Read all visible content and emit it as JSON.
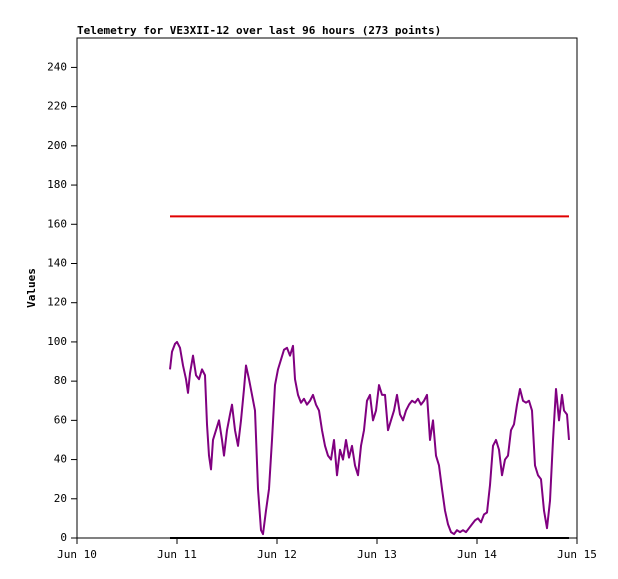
{
  "chart_data": {
    "type": "line",
    "title": "Telemetry for VE3XII-12 over last 96 hours (273 points)",
    "y_label": "Values",
    "xlim": [
      10,
      15
    ],
    "xticks": [
      {
        "value": 10,
        "label": "Jun 10"
      },
      {
        "value": 11,
        "label": "Jun 11"
      },
      {
        "value": 12,
        "label": "Jun 12"
      },
      {
        "value": 13,
        "label": "Jun 13"
      },
      {
        "value": 14,
        "label": "Jun 14"
      },
      {
        "value": 15,
        "label": "Jun 15"
      }
    ],
    "ylim": [
      0,
      255
    ],
    "yticks": [
      0,
      20,
      40,
      60,
      80,
      100,
      120,
      140,
      160,
      180,
      200,
      220,
      240
    ],
    "series": [
      {
        "color": "#e00000",
        "x": [
          10.93,
          14.92
        ],
        "values": [
          164,
          164
        ]
      },
      {
        "color": "#000000",
        "x": [
          10.93,
          14.92
        ],
        "values": [
          0,
          0
        ]
      },
      {
        "color": "#800080",
        "x": [
          10.93,
          10.95,
          10.98,
          11.0,
          11.03,
          11.06,
          11.09,
          11.11,
          11.13,
          11.16,
          11.19,
          11.22,
          11.25,
          11.28,
          11.3,
          11.32,
          11.34,
          11.36,
          11.39,
          11.42,
          11.45,
          11.47,
          11.5,
          11.53,
          11.55,
          11.58,
          11.61,
          11.64,
          11.67,
          11.69,
          11.72,
          11.75,
          11.78,
          11.81,
          11.84,
          11.86,
          11.89,
          11.92,
          11.95,
          11.98,
          12.01,
          12.04,
          12.07,
          12.1,
          12.13,
          12.16,
          12.18,
          12.21,
          12.24,
          12.27,
          12.3,
          12.33,
          12.36,
          12.39,
          12.42,
          12.45,
          12.48,
          12.51,
          12.54,
          12.57,
          12.6,
          12.63,
          12.66,
          12.69,
          12.72,
          12.75,
          12.78,
          12.81,
          12.84,
          12.87,
          12.9,
          12.93,
          12.96,
          12.99,
          13.02,
          13.05,
          13.08,
          13.11,
          13.14,
          13.17,
          13.2,
          13.23,
          13.26,
          13.29,
          13.32,
          13.35,
          13.38,
          13.41,
          13.44,
          13.47,
          13.5,
          13.53,
          13.56,
          13.59,
          13.62,
          13.65,
          13.68,
          13.71,
          13.74,
          13.77,
          13.8,
          13.83,
          13.86,
          13.89,
          13.92,
          13.95,
          13.98,
          14.01,
          14.04,
          14.07,
          14.1,
          14.13,
          14.16,
          14.19,
          14.22,
          14.25,
          14.28,
          14.31,
          14.34,
          14.37,
          14.4,
          14.43,
          14.46,
          14.49,
          14.52,
          14.55,
          14.58,
          14.61,
          14.64,
          14.67,
          14.7,
          14.73,
          14.76,
          14.79,
          14.82,
          14.85,
          14.87,
          14.9,
          14.92
        ],
        "values": [
          86,
          95,
          99,
          100,
          97,
          88,
          81,
          74,
          84,
          93,
          83,
          81,
          86,
          83,
          58,
          42,
          35,
          50,
          55,
          60,
          50,
          42,
          55,
          63,
          68,
          55,
          47,
          60,
          76,
          88,
          81,
          73,
          65,
          25,
          4,
          2,
          14,
          25,
          50,
          78,
          86,
          91,
          96,
          97,
          93,
          98,
          81,
          73,
          69,
          71,
          68,
          70,
          73,
          68,
          65,
          55,
          47,
          42,
          40,
          50,
          32,
          45,
          40,
          50,
          41,
          47,
          37,
          32,
          47,
          55,
          70,
          73,
          60,
          65,
          78,
          73,
          73,
          55,
          60,
          65,
          73,
          63,
          60,
          65,
          68,
          70,
          69,
          71,
          68,
          70,
          73,
          50,
          60,
          42,
          37,
          25,
          14,
          7,
          3,
          2,
          4,
          3,
          4,
          3,
          5,
          7,
          9,
          10,
          8,
          12,
          13,
          27,
          47,
          50,
          45,
          32,
          40,
          42,
          55,
          58,
          68,
          76,
          70,
          69,
          70,
          65,
          37,
          32,
          30,
          14,
          5,
          19,
          50,
          76,
          60,
          73,
          65,
          63,
          50
        ]
      }
    ]
  }
}
